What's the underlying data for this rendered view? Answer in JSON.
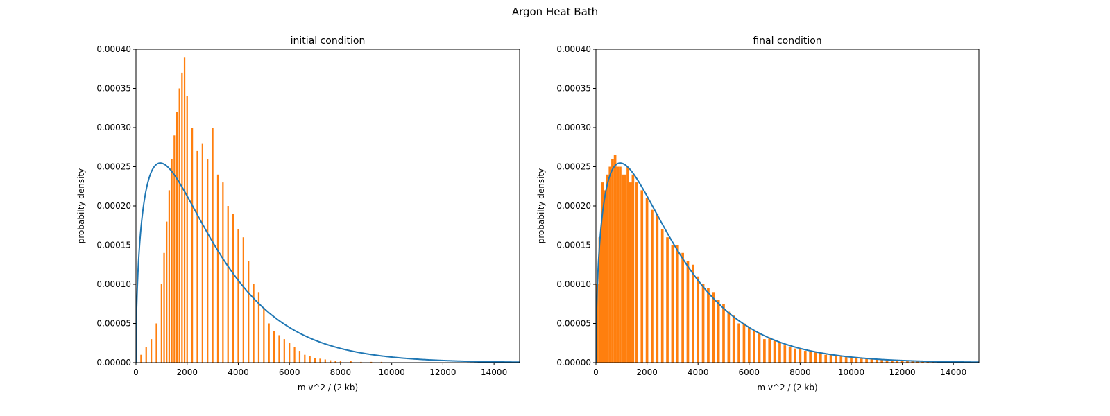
{
  "figure_title": "Argon Heat Bath",
  "colors": {
    "histogram": "#ff7f0e",
    "curve": "#1f77b4",
    "axes": "#000000"
  },
  "chart_data": [
    {
      "type": "bar",
      "title": "initial condition",
      "xlabel": "m v^2 / (2 kb)",
      "ylabel": "probabilty density",
      "xlim": [
        0,
        15000
      ],
      "ylim": [
        0,
        0.0004
      ],
      "xticks": [
        "0",
        "2000",
        "4000",
        "6000",
        "8000",
        "10000",
        "12000",
        "14000"
      ],
      "yticks": [
        "0.00000",
        "0.00005",
        "0.00010",
        "0.00015",
        "0.00020",
        "0.00025",
        "0.00030",
        "0.00035",
        "0.00040"
      ],
      "histogram": {
        "bin_width": 60,
        "x": [
          200,
          400,
          600,
          800,
          1000,
          1100,
          1200,
          1300,
          1400,
          1500,
          1600,
          1700,
          1800,
          1900,
          2000,
          2200,
          2400,
          2600,
          2800,
          3000,
          3200,
          3400,
          3600,
          3800,
          4000,
          4200,
          4400,
          4600,
          4800,
          5000,
          5200,
          5400,
          5600,
          5800,
          6000,
          6200,
          6400,
          6600,
          6800,
          7000,
          7200,
          7400,
          7600,
          7800,
          8000,
          8400,
          8800,
          9200,
          9600
        ],
        "y": [
          1e-05,
          2e-05,
          3e-05,
          5e-05,
          0.0001,
          0.00014,
          0.00018,
          0.00022,
          0.00026,
          0.00029,
          0.00032,
          0.00035,
          0.00037,
          0.00039,
          0.00034,
          0.0003,
          0.00027,
          0.00028,
          0.00026,
          0.0003,
          0.00024,
          0.00023,
          0.0002,
          0.00019,
          0.00017,
          0.00016,
          0.00013,
          0.0001,
          9e-05,
          7e-05,
          5e-05,
          4e-05,
          3.5e-05,
          3e-05,
          2.5e-05,
          2e-05,
          1.5e-05,
          1e-05,
          8e-06,
          6e-06,
          5e-06,
          4e-06,
          3e-06,
          2e-06,
          2e-06,
          2e-06,
          1e-06,
          1e-06,
          1e-06
        ]
      },
      "curve": {
        "type": "line",
        "description": "Maxwell-Boltzmann energy distribution",
        "peak_x": 950,
        "peak_y": 0.000253
      }
    },
    {
      "type": "bar",
      "title": "final condition",
      "xlabel": "m v^2 / (2 kb)",
      "ylabel": "probabilty density",
      "xlim": [
        0,
        15000
      ],
      "ylim": [
        0,
        0.0004
      ],
      "xticks": [
        "0",
        "2000",
        "4000",
        "6000",
        "8000",
        "10000",
        "12000",
        "14000"
      ],
      "yticks": [
        "0.00000",
        "0.00005",
        "0.00010",
        "0.00015",
        "0.00020",
        "0.00025",
        "0.00030",
        "0.00035",
        "0.00040"
      ],
      "histogram": {
        "bin_width": 100,
        "x": [
          50,
          150,
          250,
          350,
          450,
          550,
          650,
          750,
          850,
          950,
          1050,
          1150,
          1250,
          1350,
          1450,
          1600,
          1800,
          2000,
          2200,
          2400,
          2600,
          2800,
          3000,
          3200,
          3400,
          3600,
          3800,
          4000,
          4200,
          4400,
          4600,
          4800,
          5000,
          5200,
          5400,
          5600,
          5800,
          6000,
          6200,
          6400,
          6600,
          6800,
          7000,
          7200,
          7400,
          7600,
          7800,
          8000,
          8200,
          8400,
          8600,
          8800,
          9000,
          9200,
          9400,
          9600,
          9800,
          10000,
          10200,
          10400,
          10600,
          10800,
          11000,
          11200,
          11400,
          11600,
          11800,
          12000,
          12200,
          12400,
          12600,
          12800,
          13000,
          13200,
          13400,
          13600,
          13800,
          14000,
          14400,
          14800
        ],
        "y": [
          0.0001,
          0.00016,
          0.00023,
          0.00022,
          0.00024,
          0.00025,
          0.00026,
          0.000265,
          0.00025,
          0.00025,
          0.00024,
          0.00024,
          0.00025,
          0.00023,
          0.00024,
          0.00023,
          0.00022,
          0.00021,
          0.000195,
          0.00019,
          0.00017,
          0.00016,
          0.00015,
          0.00015,
          0.00014,
          0.00013,
          0.000125,
          0.00011,
          0.0001,
          9.5e-05,
          9e-05,
          8e-05,
          7.5e-05,
          6.5e-05,
          6e-05,
          5e-05,
          5e-05,
          4.5e-05,
          4e-05,
          3.8e-05,
          3e-05,
          3.2e-05,
          2.8e-05,
          2.5e-05,
          2.2e-05,
          2e-05,
          1.8e-05,
          1.8e-05,
          1.5e-05,
          1.4e-05,
          1.3e-05,
          1.2e-05,
          1e-05,
          1e-05,
          9e-06,
          8e-06,
          7e-06,
          7e-06,
          6e-06,
          5e-06,
          5e-06,
          4e-06,
          4e-06,
          4e-06,
          3e-06,
          3e-06,
          3e-06,
          2e-06,
          2e-06,
          2e-06,
          2e-06,
          2e-06,
          2e-06,
          1e-06,
          1e-06,
          1e-06,
          1e-06,
          1e-06,
          1e-06,
          1e-06
        ]
      },
      "curve": {
        "type": "line",
        "description": "Maxwell-Boltzmann energy distribution",
        "peak_x": 950,
        "peak_y": 0.000253
      }
    }
  ]
}
